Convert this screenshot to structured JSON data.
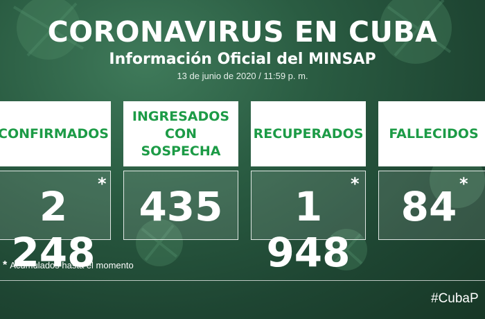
{
  "header": {
    "title": "CORONAVIRUS EN CUBA",
    "subtitle": "Información Oficial del MINSAP",
    "date": "13 de junio de 2020 / 11:59 p. m."
  },
  "cards": [
    {
      "label": "CONFIRMADOS",
      "value": "2 248",
      "asterisk": "*"
    },
    {
      "label": "INGRESADOS\nCON SOSPECHA",
      "value": "435",
      "asterisk": ""
    },
    {
      "label": "RECUPERADOS",
      "value": "1 948",
      "asterisk": "*"
    },
    {
      "label": "FALLECIDOS",
      "value": "84",
      "asterisk": "*"
    }
  ],
  "footnote": {
    "symbol": "*",
    "text": "Acumulados hasta el momento"
  },
  "hashtag": "#CubaP",
  "colors": {
    "background": "#1e4532",
    "label_green": "#1c9b46",
    "card_head": "#ffffff"
  }
}
